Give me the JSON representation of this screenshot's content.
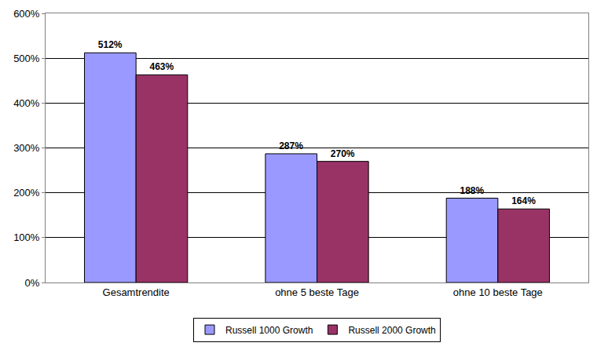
{
  "chart_data": {
    "type": "bar",
    "categories": [
      "Gesamtrendite",
      "ohne 5 beste Tage",
      "ohne 10 beste Tage"
    ],
    "series": [
      {
        "name": "Russell 1000 Growth",
        "color": "#9999ff",
        "values": [
          512,
          287,
          188
        ],
        "value_labels": [
          "512%",
          "287%",
          "188%"
        ]
      },
      {
        "name": "Russell 2000 Growth",
        "color": "#993366",
        "values": [
          463,
          270,
          164
        ],
        "value_labels": [
          "463%",
          "270%",
          "164%"
        ]
      }
    ],
    "ylim": [
      0,
      600
    ],
    "yticks": [
      {
        "value": 0,
        "label": "0%"
      },
      {
        "value": 100,
        "label": "100%"
      },
      {
        "value": 200,
        "label": "200%"
      },
      {
        "value": 300,
        "label": "300%"
      },
      {
        "value": 400,
        "label": "400%"
      },
      {
        "value": 500,
        "label": "500%"
      },
      {
        "value": 600,
        "label": "600%"
      }
    ],
    "grid": true,
    "data_labels": true,
    "legend": "bottom"
  }
}
